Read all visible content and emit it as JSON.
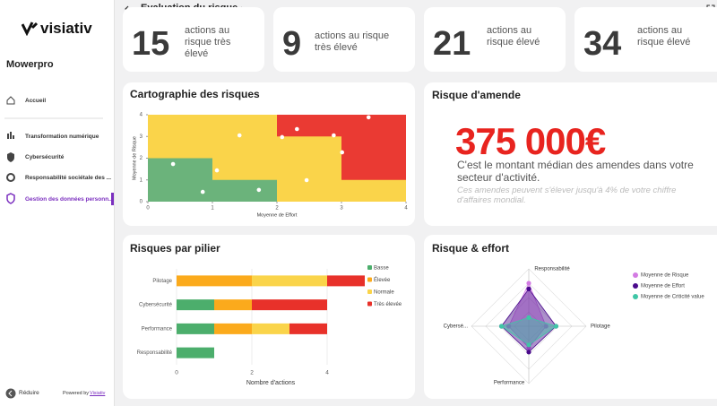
{
  "sidebar": {
    "logo": "visiativ",
    "org": "Mowerpro",
    "nav": [
      "Accueil",
      "Transformation numérique",
      "Cybersécurité",
      "Responsabilité sociétale des ...",
      "Gestion des données personn..."
    ],
    "collapse": "Réduire",
    "powered_by": "Powered by",
    "powered_link": "Visiativ"
  },
  "header": {
    "title": "Evaluation du risque"
  },
  "kpis": [
    {
      "value": 15,
      "label": "actions au risque très élevé"
    },
    {
      "value": 9,
      "label": "actions au risque très élevé"
    },
    {
      "value": 21,
      "label": "actions au risque élevé"
    },
    {
      "value": 34,
      "label": "actions au risque élevé"
    }
  ],
  "fine": {
    "title": "Risque d'amende",
    "value": "375 000€",
    "text": "C'est le montant médian des amendes dans votre secteur d'activité.",
    "note": "Ces amendes peuvent s'élever jusqu'à 4% de votre chiffre d'affaires mondial."
  },
  "chart_data": [
    {
      "type": "scatter",
      "title": "Cartographie des risques",
      "xlabel": "Moyenne de Effort",
      "ylabel": "Moyenne de Risque",
      "color": "#ffffff",
      "x": [
        1.42,
        0.39,
        1.07,
        0.85,
        1.72,
        2.08,
        2.31,
        2.88,
        3.01,
        2.46,
        3.42
      ],
      "y": [
        3.05,
        1.73,
        1.44,
        0.45,
        0.54,
        2.97,
        3.34,
        3.05,
        2.27,
        0.99,
        3.88
      ],
      "xlim": [
        0,
        4
      ],
      "ylim": [
        0,
        4
      ],
      "xticks": [
        0,
        1,
        2,
        3,
        4
      ],
      "yticks": [
        0,
        1,
        2,
        3,
        4
      ]
    },
    {
      "type": "hbar",
      "title": "Risques par pilier",
      "xlabel": "Nombre d'actions",
      "categories": [
        "Pilotage",
        "Cybersécurité",
        "Performance",
        "Responsabilité"
      ],
      "series": [
        {
          "name": "Basse",
          "color": "#4cae6c",
          "values": [
            0,
            1,
            1,
            1
          ]
        },
        {
          "name": "Élevée",
          "color": "#fbaa1c",
          "values": [
            2,
            1,
            1,
            0
          ]
        },
        {
          "name": "Normale",
          "color": "#fad44a",
          "values": [
            2,
            0,
            1,
            0
          ]
        },
        {
          "name": "Très élevée",
          "color": "#e8312a",
          "values": [
            1,
            2,
            1,
            0
          ]
        }
      ],
      "xlim": [
        0,
        5.3
      ],
      "xticks": [
        0,
        2,
        4
      ],
      "legend": "right"
    },
    {
      "type": "radar",
      "title": "Risque & effort",
      "axes": [
        "Responsabilité",
        "Pilotage",
        "Performance",
        "Cybersé..."
      ],
      "series": [
        {
          "name": "Moyenne de Risque",
          "color": "#d37be3",
          "values": [
            3.0,
            1.2,
            1.5,
            1.4
          ]
        },
        {
          "name": "Moyenne de Effort",
          "color": "#4a0a8c",
          "values": [
            2.6,
            1.9,
            1.8,
            1.9
          ]
        },
        {
          "name": "Moyenne de Criticité value",
          "color": "#3fc6a6",
          "values": [
            0.6,
            1.9,
            1.3,
            1.9
          ]
        }
      ],
      "rlim": [
        0,
        4
      ],
      "legend": "right"
    }
  ]
}
